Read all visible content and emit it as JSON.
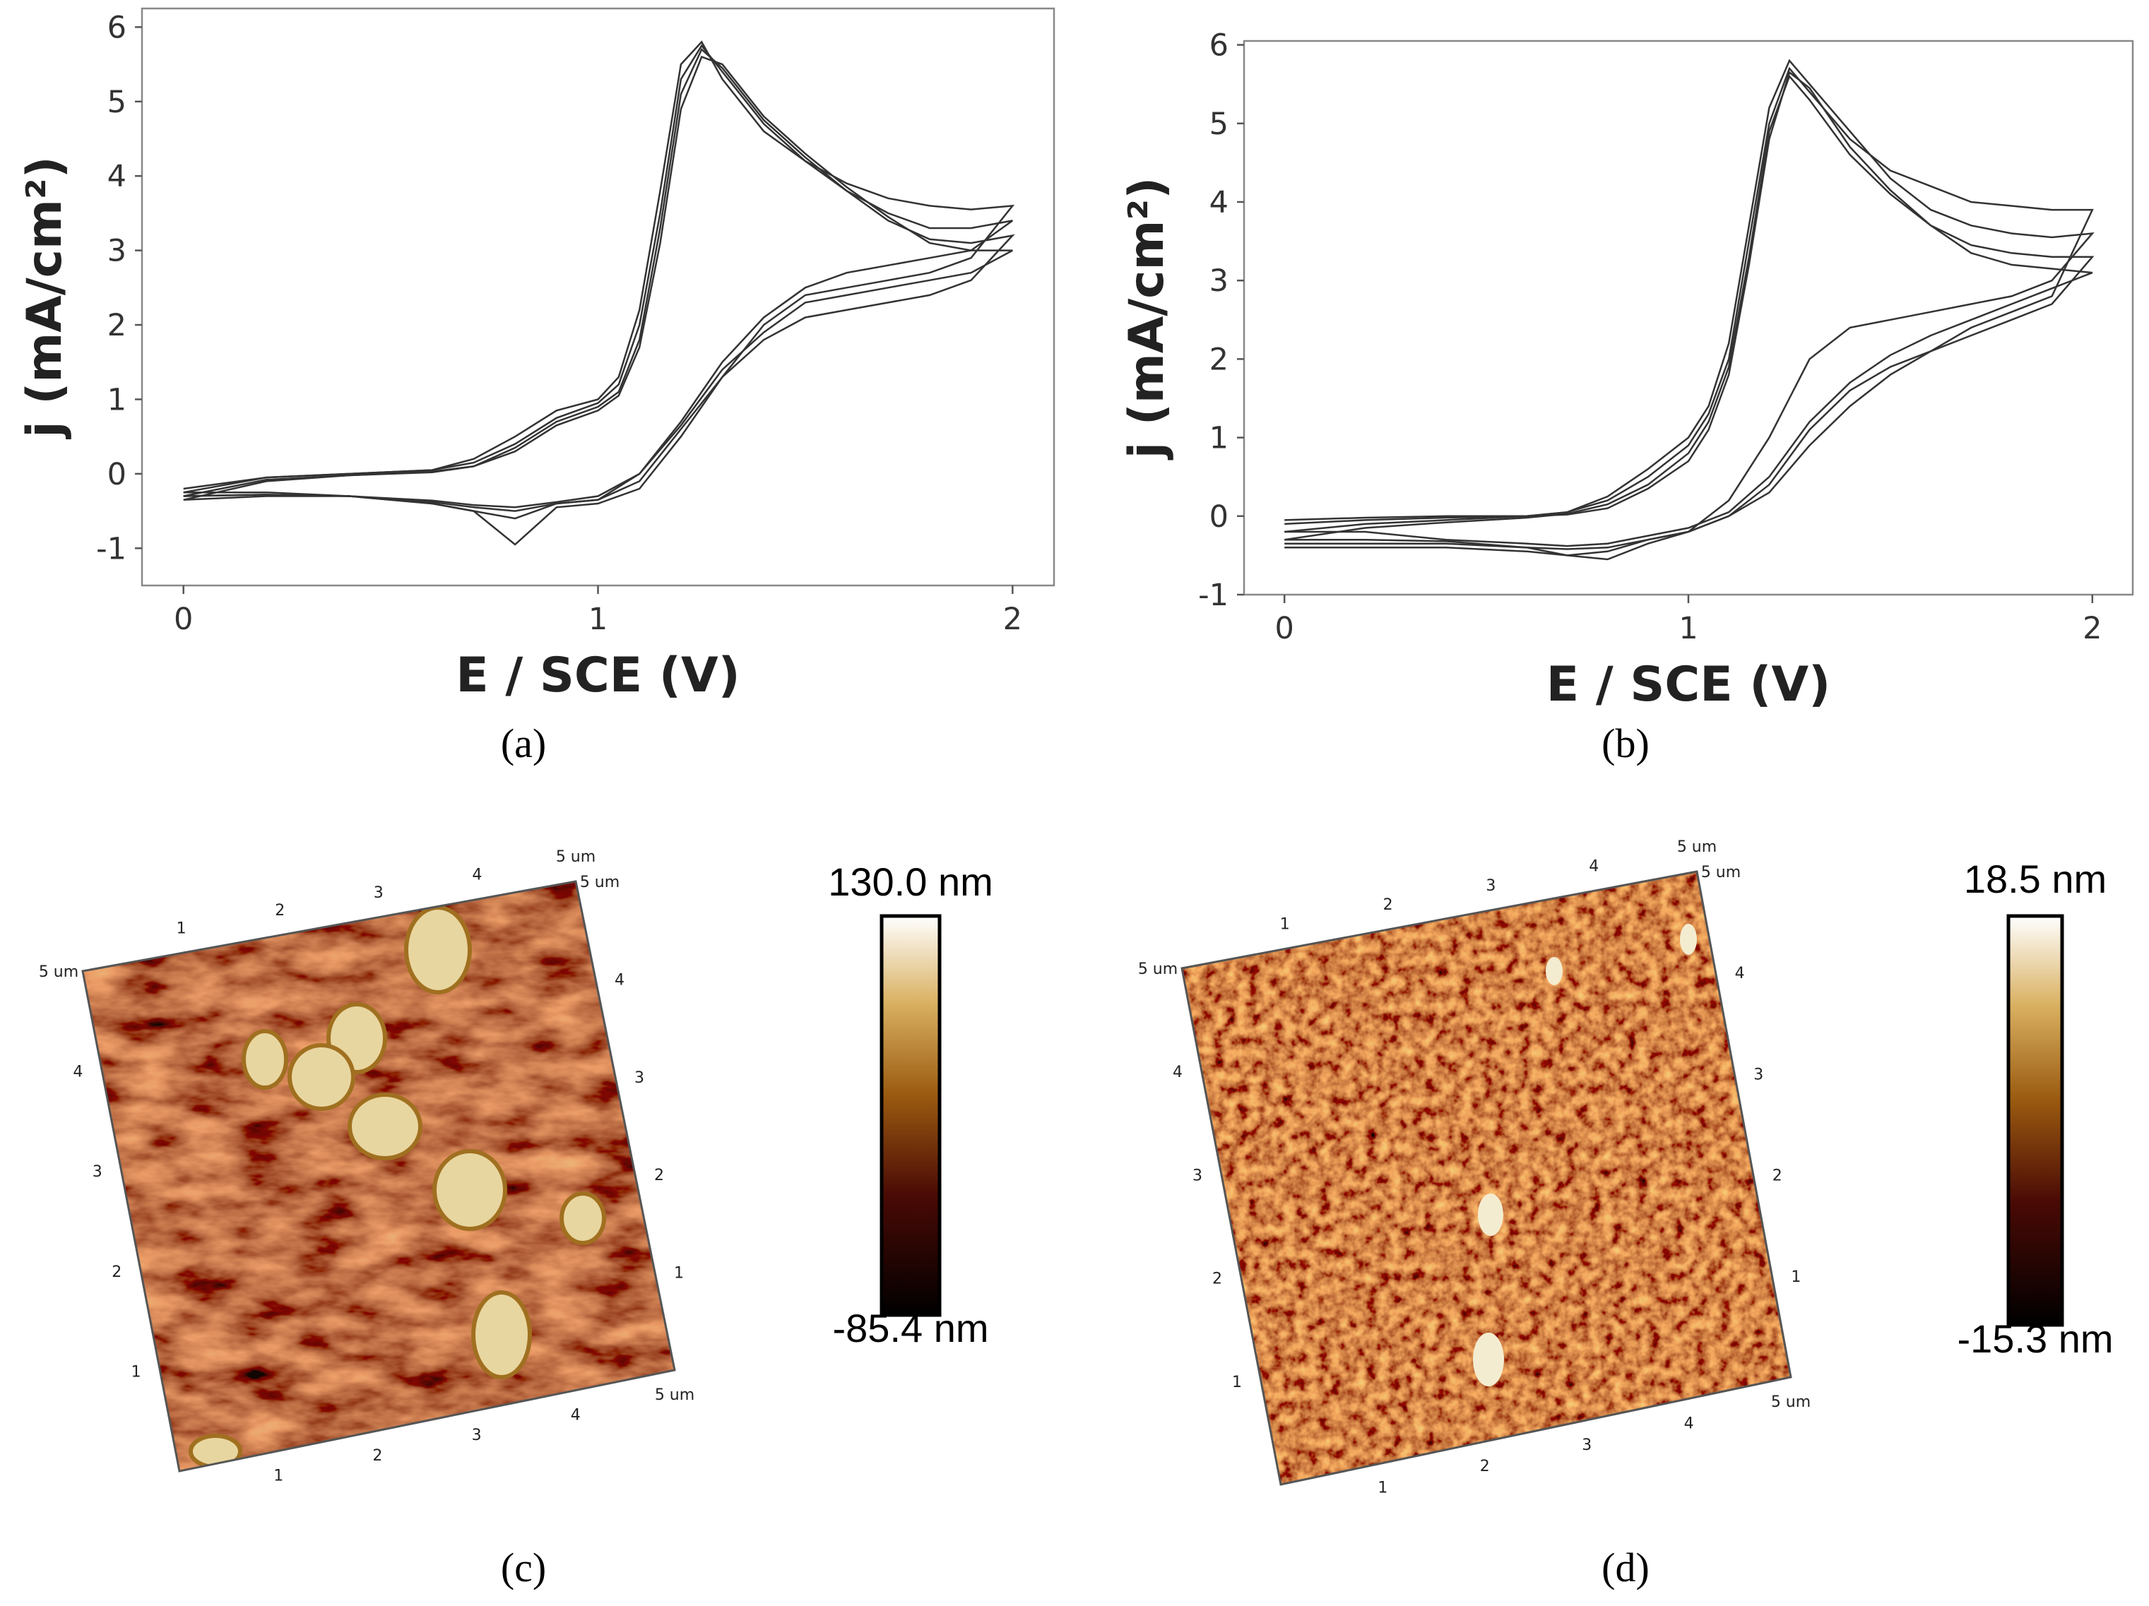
{
  "chart_data": [
    {
      "type": "line",
      "panel": "(a)",
      "xlabel": "E / SCE (V)",
      "ylabel": "j (mA/cm²)",
      "xlim": [
        -0.1,
        2.1
      ],
      "ylim": [
        -1.5,
        6.25
      ],
      "xticks": [
        0,
        1,
        2
      ],
      "yticks": [
        -1,
        0,
        1,
        2,
        3,
        4,
        5,
        6
      ],
      "x": [
        0,
        0.2,
        0.4,
        0.6,
        0.7,
        0.8,
        0.9,
        1.0,
        1.05,
        1.1,
        1.15,
        1.2,
        1.25,
        1.3,
        1.4,
        1.5,
        1.6,
        1.7,
        1.8,
        1.9,
        2.0,
        1.9,
        1.8,
        1.7,
        1.6,
        1.5,
        1.4,
        1.3,
        1.2,
        1.1,
        1.0,
        0.9,
        0.8,
        0.7,
        0.6,
        0.4,
        0.2,
        0
      ],
      "series": [
        {
          "color": "#333333",
          "values": [
            -0.25,
            -0.05,
            0,
            0.05,
            0.2,
            0.5,
            0.85,
            1.0,
            1.3,
            2.2,
            3.8,
            5.5,
            5.8,
            5.3,
            4.6,
            4.2,
            3.9,
            3.7,
            3.6,
            3.55,
            3.6,
            2.9,
            2.7,
            2.6,
            2.5,
            2.4,
            2.0,
            1.3,
            0.5,
            -0.2,
            -0.4,
            -0.45,
            -0.95,
            -0.5,
            -0.4,
            -0.3,
            -0.28,
            -0.3
          ]
        },
        {
          "color": "#333333",
          "values": [
            -0.2,
            -0.05,
            0,
            0.05,
            0.15,
            0.4,
            0.75,
            0.95,
            1.2,
            2.0,
            3.5,
            5.3,
            5.75,
            5.4,
            4.7,
            4.2,
            3.8,
            3.5,
            3.3,
            3.3,
            3.4,
            3.0,
            2.9,
            2.8,
            2.7,
            2.5,
            2.1,
            1.5,
            0.7,
            0,
            -0.35,
            -0.4,
            -0.6,
            -0.5,
            -0.4,
            -0.3,
            -0.25,
            -0.25
          ]
        },
        {
          "color": "#333333",
          "values": [
            -0.3,
            -0.08,
            -0.02,
            0.03,
            0.1,
            0.35,
            0.7,
            0.9,
            1.1,
            1.8,
            3.3,
            5.1,
            5.7,
            5.45,
            4.75,
            4.25,
            3.8,
            3.4,
            3.15,
            3.1,
            3.2,
            2.6,
            2.4,
            2.3,
            2.2,
            2.1,
            1.8,
            1.3,
            0.6,
            -0.1,
            -0.35,
            -0.4,
            -0.5,
            -0.45,
            -0.38,
            -0.3,
            -0.28,
            -0.3
          ]
        },
        {
          "color": "#333333",
          "values": [
            -0.35,
            -0.1,
            -0.02,
            0.02,
            0.1,
            0.3,
            0.65,
            0.85,
            1.05,
            1.7,
            3.1,
            4.9,
            5.6,
            5.5,
            4.8,
            4.3,
            3.85,
            3.45,
            3.1,
            3.0,
            3.0,
            2.7,
            2.6,
            2.5,
            2.4,
            2.3,
            1.9,
            1.4,
            0.65,
            0,
            -0.3,
            -0.38,
            -0.45,
            -0.42,
            -0.36,
            -0.3,
            -0.3,
            -0.35
          ]
        }
      ]
    },
    {
      "type": "line",
      "panel": "(b)",
      "xlabel": "E / SCE (V)",
      "ylabel": "j (mA/cm²)",
      "xlim": [
        -0.1,
        2.1
      ],
      "ylim": [
        -1,
        6.05
      ],
      "xticks": [
        0,
        1,
        2
      ],
      "yticks": [
        -1,
        0,
        1,
        2,
        3,
        4,
        5,
        6
      ],
      "x": [
        0,
        0.2,
        0.4,
        0.6,
        0.7,
        0.8,
        0.9,
        1.0,
        1.05,
        1.1,
        1.15,
        1.2,
        1.25,
        1.3,
        1.4,
        1.5,
        1.6,
        1.7,
        1.8,
        1.9,
        2.0,
        1.9,
        1.8,
        1.7,
        1.6,
        1.5,
        1.4,
        1.3,
        1.2,
        1.1,
        1.0,
        0.9,
        0.8,
        0.7,
        0.6,
        0.4,
        0.2,
        0
      ],
      "series": [
        {
          "color": "#333333",
          "values": [
            -0.2,
            -0.1,
            -0.05,
            0,
            0.05,
            0.2,
            0.5,
            0.9,
            1.3,
            2.0,
            3.5,
            5.0,
            5.7,
            5.4,
            4.8,
            4.4,
            4.2,
            4.0,
            3.95,
            3.9,
            3.9,
            2.8,
            2.6,
            2.4,
            2.1,
            1.8,
            1.4,
            0.9,
            0.3,
            0,
            -0.2,
            -0.3,
            -0.45,
            -0.5,
            -0.45,
            -0.4,
            -0.4,
            -0.4
          ]
        },
        {
          "color": "#333333",
          "values": [
            -0.05,
            -0.02,
            0,
            0,
            0.05,
            0.25,
            0.6,
            1.0,
            1.4,
            2.2,
            3.7,
            5.2,
            5.8,
            5.5,
            4.9,
            4.3,
            3.9,
            3.7,
            3.6,
            3.55,
            3.6,
            3.0,
            2.8,
            2.7,
            2.6,
            2.5,
            2.4,
            2.0,
            1.0,
            0.2,
            -0.2,
            -0.35,
            -0.55,
            -0.5,
            -0.4,
            -0.32,
            -0.3,
            -0.3
          ]
        },
        {
          "color": "#333333",
          "values": [
            -0.3,
            -0.15,
            -0.08,
            -0.02,
            0.03,
            0.15,
            0.4,
            0.8,
            1.2,
            1.9,
            3.3,
            4.9,
            5.6,
            5.3,
            4.6,
            4.1,
            3.7,
            3.45,
            3.35,
            3.3,
            3.3,
            2.7,
            2.5,
            2.3,
            2.1,
            1.9,
            1.6,
            1.1,
            0.4,
            0,
            -0.2,
            -0.3,
            -0.4,
            -0.42,
            -0.4,
            -0.35,
            -0.35,
            -0.35
          ]
        },
        {
          "color": "#333333",
          "values": [
            -0.1,
            -0.05,
            -0.02,
            0,
            0.02,
            0.1,
            0.35,
            0.7,
            1.1,
            1.8,
            3.2,
            4.8,
            5.65,
            5.45,
            4.7,
            4.15,
            3.7,
            3.35,
            3.2,
            3.15,
            3.1,
            2.9,
            2.7,
            2.5,
            2.3,
            2.05,
            1.7,
            1.2,
            0.5,
            0.05,
            -0.15,
            -0.25,
            -0.35,
            -0.38,
            -0.35,
            -0.3,
            -0.2,
            -0.2
          ]
        }
      ]
    }
  ],
  "afm": [
    {
      "panel": "(c)",
      "colorbar_max": "130.0 nm",
      "colorbar_min": "-85.4 nm",
      "ticks": [
        "1",
        "2",
        "3",
        "4",
        "5 um"
      ]
    },
    {
      "panel": "(d)",
      "colorbar_max": "18.5 nm",
      "colorbar_min": "-15.3 nm",
      "ticks": [
        "1",
        "2",
        "3",
        "4",
        "5 um"
      ]
    }
  ]
}
